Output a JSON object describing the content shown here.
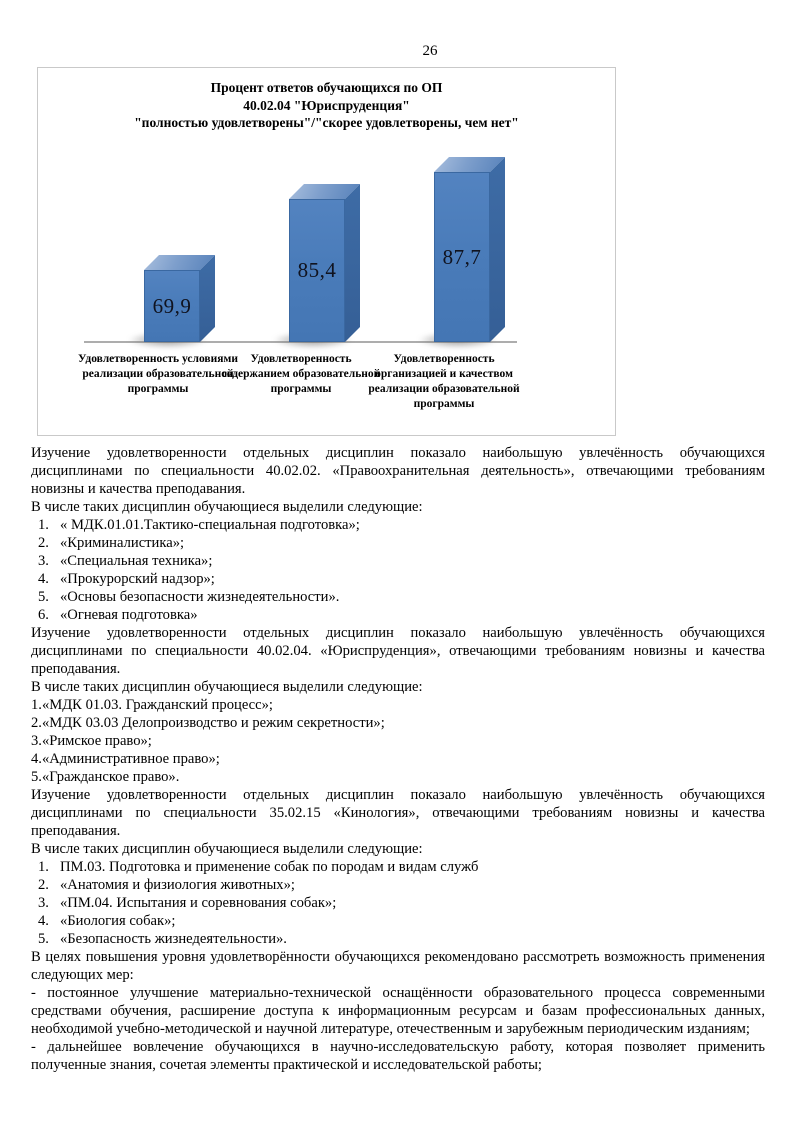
{
  "page": {
    "number": "26"
  },
  "chart": {
    "title_line1": "Процент ответов обучающихся по ОП",
    "title_line2": "40.02.04 \"Юриспруденция\"",
    "title_line3": "\"полностью удовлетворены\"/\"скорее удовлетворены, чем нет\"",
    "bars": [
      {
        "value_label": "69,9",
        "category": "Удовлетворенность условиями реализации образовательной программы"
      },
      {
        "value_label": "85,4",
        "category": "Удовлетворенность содержанием образовательной программы"
      },
      {
        "value_label": "87,7",
        "category": "Удовлетворенность организацией и качеством реализации образовательной программы"
      }
    ]
  },
  "chart_data": {
    "type": "bar",
    "title": "Процент ответов обучающихся по ОП 40.02.04 \"Юриспруденция\" \"полностью удовлетворены\"/\"скорее удовлетворены, чем нет\"",
    "categories": [
      "Удовлетворенность условиями реализации образовательной программы",
      "Удовлетворенность содержанием образовательной программы",
      "Удовлетворенность организацией и качеством реализации образовательной программы"
    ],
    "values": [
      69.9,
      85.4,
      87.7
    ],
    "value_labels": [
      "69,9",
      "85,4",
      "87,7"
    ],
    "xlabel": "",
    "ylabel": "",
    "ylim": [
      0,
      100
    ],
    "grid": false,
    "legend": "none",
    "bar_color": "#4a7cba",
    "style": "3d-column"
  },
  "content": {
    "para1": "Изучение удовлетворенности отдельных дисциплин показало наибольшую увлечённость обучающихся дисциплинами по специальности 40.02.02. «Правоохранительная деятельность», отвечающими требованиям новизны и качества преподавания.",
    "list_intro1": "В числе таких дисциплин обучающиеся выделили следующие:",
    "list1": [
      {
        "num": "1.",
        "text": "« МДК.01.01.Тактико-специальная подготовка»;"
      },
      {
        "num": "2.",
        "text": "«Криминалистика»;"
      },
      {
        "num": "3.",
        "text": "«Специальная техника»;"
      },
      {
        "num": "4.",
        "text": "«Прокурорский надзор»;"
      },
      {
        "num": "5.",
        "text": "«Основы безопасности жизнедеятельности»."
      },
      {
        "num": "6.",
        "text": "«Огневая подготовка»"
      }
    ],
    "para2": "Изучение удовлетворенности отдельных дисциплин показало наибольшую увлечённость обучающихся дисциплинами по специальности 40.02.04. «Юриспруденция», отвечающими требованиям новизны и качества преподавания.",
    "list_intro2": "В числе таких дисциплин обучающиеся выделили следующие:",
    "list2": [
      {
        "num": "1.",
        "text": "«МДК 01.03. Гражданский процесс»;"
      },
      {
        "num": "2.",
        "text": "«МДК 03.03 Делопроизводство и режим секретности»;"
      },
      {
        "num": "3.",
        "text": "«Римское право»;"
      },
      {
        "num": "4.",
        "text": "«Административное право»;"
      },
      {
        "num": "5.",
        "text": "«Гражданское право»."
      }
    ],
    "para3": "Изучение удовлетворенности отдельных дисциплин показало наибольшую увлечённость обучающихся дисциплинами по специальности 35.02.15 «Кинология», отвечающими требованиям новизны и качества преподавания.",
    "list_intro3": "В числе таких дисциплин обучающиеся выделили следующие:",
    "list3": [
      {
        "num": "1.",
        "text": "ПМ.03. Подготовка и применение собак по породам и видам служб"
      },
      {
        "num": "2.",
        "text": "«Анатомия и физиология животных»;"
      },
      {
        "num": "3.",
        "text": "«ПМ.04. Испытания и соревнования собак»;"
      },
      {
        "num": "4.",
        "text": "«Биология собак»;"
      },
      {
        "num": "5.",
        "text": "«Безопасность жизнедеятельности»."
      }
    ],
    "para4": " В целях повышения уровня удовлетворённости обучающихся рекомендовано рассмотреть возможность применения следующих мер:",
    "measure1": "- постоянное улучшение материально-технической оснащённости образовательного процесса современными средствами обучения, расширение доступа к информационным ресурсам и базам профессиональных данных, необходимой учебно-методической и научной литературе, отечественным и зарубежным периодическим изданиям;",
    "measure2": "- дальнейшее вовлечение обучающихся в научно-исследовательскую работу, которая позволяет применить полученные знания, сочетая элементы практической и исследовательской работы;"
  }
}
